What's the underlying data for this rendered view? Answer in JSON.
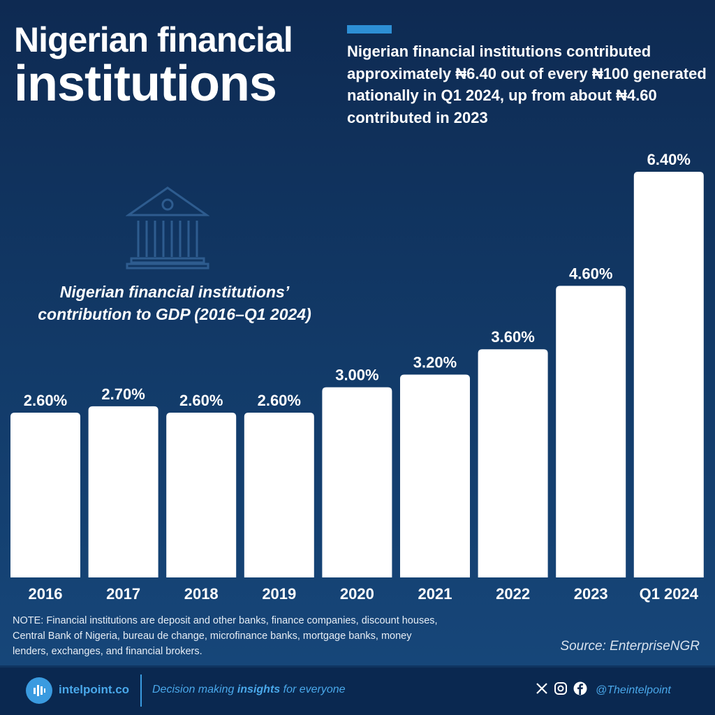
{
  "header": {
    "title_line1": "Nigerian financial",
    "title_line2": "institutions",
    "description": "Nigerian financial institutions contributed approximately ₦6.40 out of every ₦100 generated nationally in Q1 2024, up from about ₦4.60 contributed in 2023"
  },
  "chart_data": {
    "type": "bar",
    "title": "Nigerian financial institutions’ contribution to GDP (2016–Q1 2024)",
    "categories": [
      "2016",
      "2017",
      "2018",
      "2019",
      "2020",
      "2021",
      "2022",
      "2023",
      "Q1 2024"
    ],
    "values": [
      2.6,
      2.7,
      2.6,
      2.6,
      3.0,
      3.2,
      3.6,
      4.6,
      6.4
    ],
    "data_labels": [
      "2.60%",
      "2.70%",
      "2.60%",
      "2.60%",
      "3.00%",
      "3.20%",
      "3.60%",
      "4.60%",
      "6.40%"
    ],
    "ylim": [
      0,
      6.4
    ],
    "grid": false,
    "bar_color": "#ffffff"
  },
  "note": "NOTE: Financial institutions are deposit and other banks, finance companies, discount houses, Central Bank of Nigeria, bureau de change, microfinance banks, mortgage banks, money lenders, exchanges, and financial brokers.",
  "source": "Source: EnterpriseNGR",
  "footer": {
    "brand": "intelpoint.co",
    "tagline_pre": "Decision making ",
    "tagline_bold": "insights",
    "tagline_post": " for everyone",
    "handle": "@Theintelpoint",
    "icons": [
      "x-icon",
      "instagram-icon",
      "facebook-icon"
    ]
  },
  "colors": {
    "accent": "#2d8fd5",
    "footer_text": "#4aa8ea"
  }
}
